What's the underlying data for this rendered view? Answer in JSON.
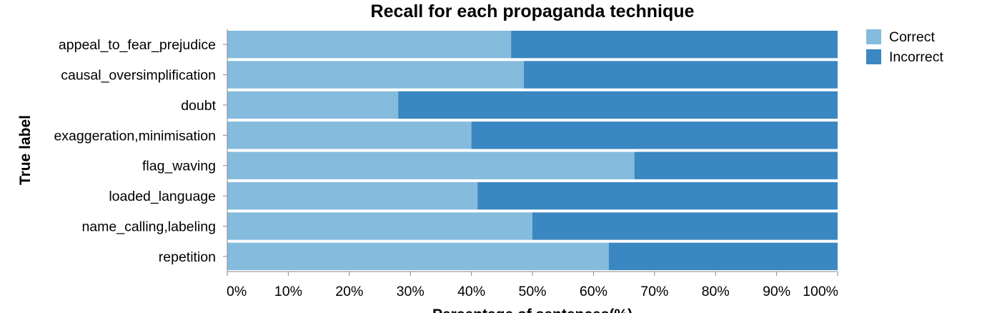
{
  "chart_data": {
    "type": "bar",
    "orientation": "horizontal",
    "stacked": "normalized",
    "title": "Recall for each propaganda technique",
    "xlabel": "Percentage of sentences(%)",
    "ylabel": "True label",
    "xlim": [
      0,
      100
    ],
    "xticks": [
      "0%",
      "10%",
      "20%",
      "30%",
      "40%",
      "50%",
      "60%",
      "70%",
      "80%",
      "90%",
      "100%"
    ],
    "categories": [
      "appeal_to_fear_prejudice",
      "causal_oversimplification",
      "doubt",
      "exaggeration,minimisation",
      "flag_waving",
      "loaded_language",
      "name_calling,labeling",
      "repetition"
    ],
    "series": [
      {
        "name": "Correct",
        "color": "#85bbdd",
        "values": [
          46.5,
          48.6,
          28.0,
          40.0,
          66.7,
          41.0,
          50.0,
          62.5
        ]
      },
      {
        "name": "Incorrect",
        "color": "#3a87c2",
        "values": [
          53.5,
          51.4,
          72.0,
          60.0,
          33.3,
          59.0,
          50.0,
          37.5
        ]
      }
    ],
    "grid": false,
    "legend_position": "top-right"
  }
}
